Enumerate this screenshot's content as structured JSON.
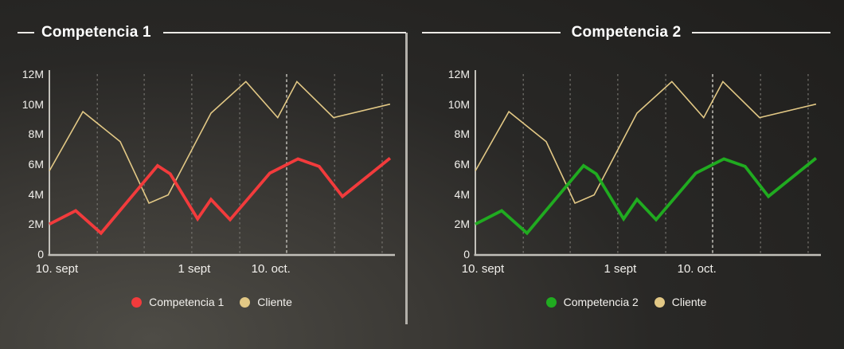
{
  "theme": {
    "background_dark": "#1f1e1c",
    "background_light": "#4e4c46",
    "text_color": "#f2f0ec",
    "title_color": "#ffffff",
    "axis_color": "#c2c0ba",
    "gridline_color": "#75736e",
    "gridline_emphasized_color": "#9b9993",
    "divider_color": "#b3b0aa"
  },
  "chart_data": [
    {
      "type": "line",
      "title": "Competencia 1",
      "legend_position": "bottom",
      "grid": "vertical-dashed",
      "y_axis": {
        "min": 0,
        "max": 12,
        "unit": "M",
        "ticks": [
          "12M",
          "10M",
          "8M",
          "6M",
          "4M",
          "2M",
          "0"
        ]
      },
      "x_axis": {
        "tick_labels": [
          {
            "text": "10. sept",
            "pos": -0.04,
            "anchor": "start"
          },
          {
            "text": "1 sept",
            "pos": 0.423,
            "anchor": "middle"
          },
          {
            "text": "10. oct.",
            "pos": 0.647,
            "anchor": "middle"
          }
        ]
      },
      "gridlines": {
        "vertical_pos": [
          0.14,
          0.277,
          0.416,
          0.556,
          0.693,
          0.833,
          0.972
        ],
        "emphasized_index": 4
      },
      "series": [
        {
          "name": "Competencia 1",
          "color": "#f23b3c",
          "line_width": 3.8,
          "points": [
            {
              "x": 0.0,
              "y": 2.0
            },
            {
              "x": 0.077,
              "y": 2.9
            },
            {
              "x": 0.151,
              "y": 1.4
            },
            {
              "x": 0.316,
              "y": 5.9
            },
            {
              "x": 0.353,
              "y": 5.35
            },
            {
              "x": 0.433,
              "y": 2.35
            },
            {
              "x": 0.472,
              "y": 3.65
            },
            {
              "x": 0.528,
              "y": 2.3
            },
            {
              "x": 0.644,
              "y": 5.4
            },
            {
              "x": 0.726,
              "y": 6.35
            },
            {
              "x": 0.788,
              "y": 5.85
            },
            {
              "x": 0.856,
              "y": 3.85
            },
            {
              "x": 0.995,
              "y": 6.4
            }
          ]
        },
        {
          "name": "Cliente",
          "color": "#e2c885",
          "line_width": 1.6,
          "points": [
            {
              "x": 0.0,
              "y": 5.55
            },
            {
              "x": 0.098,
              "y": 9.5
            },
            {
              "x": 0.207,
              "y": 7.5
            },
            {
              "x": 0.291,
              "y": 3.4
            },
            {
              "x": 0.347,
              "y": 3.95
            },
            {
              "x": 0.472,
              "y": 9.4
            },
            {
              "x": 0.574,
              "y": 11.5
            },
            {
              "x": 0.667,
              "y": 9.1
            },
            {
              "x": 0.723,
              "y": 11.5
            },
            {
              "x": 0.83,
              "y": 9.1
            },
            {
              "x": 0.995,
              "y": 10.0
            }
          ]
        }
      ]
    },
    {
      "type": "line",
      "title": "Competencia 2",
      "legend_position": "bottom",
      "grid": "vertical-dashed",
      "y_axis": {
        "min": 0,
        "max": 12,
        "unit": "M",
        "ticks": [
          "12M",
          "10M",
          "8M",
          "6M",
          "4M",
          "2M",
          "0"
        ]
      },
      "x_axis": {
        "tick_labels": [
          {
            "text": "10. sept",
            "pos": -0.04,
            "anchor": "start"
          },
          {
            "text": "1 sept",
            "pos": 0.423,
            "anchor": "middle"
          },
          {
            "text": "10. oct.",
            "pos": 0.647,
            "anchor": "middle"
          }
        ]
      },
      "gridlines": {
        "vertical_pos": [
          0.14,
          0.277,
          0.416,
          0.556,
          0.693,
          0.833,
          0.972
        ],
        "emphasized_index": 4
      },
      "series": [
        {
          "name": "Competencia 2",
          "color": "#20ab20",
          "line_width": 3.8,
          "points": [
            {
              "x": 0.0,
              "y": 2.0
            },
            {
              "x": 0.077,
              "y": 2.9
            },
            {
              "x": 0.151,
              "y": 1.4
            },
            {
              "x": 0.316,
              "y": 5.9
            },
            {
              "x": 0.353,
              "y": 5.35
            },
            {
              "x": 0.433,
              "y": 2.35
            },
            {
              "x": 0.472,
              "y": 3.65
            },
            {
              "x": 0.528,
              "y": 2.3
            },
            {
              "x": 0.644,
              "y": 5.4
            },
            {
              "x": 0.726,
              "y": 6.35
            },
            {
              "x": 0.788,
              "y": 5.85
            },
            {
              "x": 0.856,
              "y": 3.85
            },
            {
              "x": 0.995,
              "y": 6.4
            }
          ]
        },
        {
          "name": "Cliente",
          "color": "#e2c885",
          "line_width": 1.6,
          "points": [
            {
              "x": 0.0,
              "y": 5.55
            },
            {
              "x": 0.098,
              "y": 9.5
            },
            {
              "x": 0.207,
              "y": 7.5
            },
            {
              "x": 0.291,
              "y": 3.4
            },
            {
              "x": 0.347,
              "y": 3.95
            },
            {
              "x": 0.472,
              "y": 9.4
            },
            {
              "x": 0.574,
              "y": 11.5
            },
            {
              "x": 0.667,
              "y": 9.1
            },
            {
              "x": 0.723,
              "y": 11.5
            },
            {
              "x": 0.83,
              "y": 9.1
            },
            {
              "x": 0.995,
              "y": 10.0
            }
          ]
        }
      ]
    }
  ]
}
